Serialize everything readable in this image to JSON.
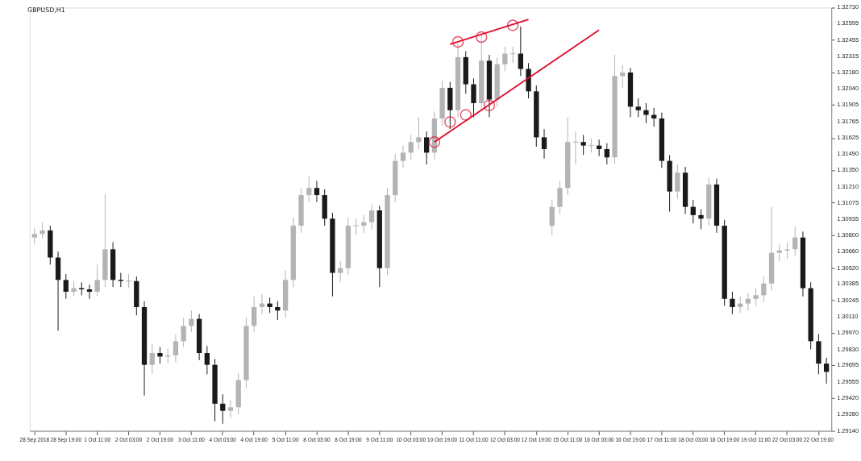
{
  "chart_data": {
    "type": "candlestick",
    "title": "GBPUSD,H1",
    "categories": [
      "28 Sep 2018",
      null,
      null,
      null,
      "28 Sep 19:00",
      null,
      null,
      null,
      "1 Oct 11:00",
      null,
      null,
      null,
      "2 Oct 03:00",
      null,
      null,
      null,
      "2 Oct 19:00",
      null,
      null,
      null,
      "3 Oct 11:00",
      null,
      null,
      null,
      "4 Oct 03:00",
      null,
      null,
      null,
      "4 Oct 19:00",
      null,
      null,
      null,
      "5 Oct 11:00",
      null,
      null,
      null,
      "8 Oct 03:00",
      null,
      null,
      null,
      "8 Oct 19:00",
      null,
      null,
      null,
      "9 Oct 11:00",
      null,
      null,
      null,
      "10 Oct 03:00",
      null,
      null,
      null,
      "10 Oct 19:00",
      null,
      null,
      null,
      "11 Oct 11:00",
      null,
      null,
      null,
      "12 Oct 03:00",
      null,
      null,
      null,
      "12 Oct 19:00",
      null,
      null,
      null,
      "15 Oct 11:00",
      null,
      null,
      null,
      "16 Oct 03:00",
      null,
      null,
      null,
      "16 Oct 19:00",
      null,
      null,
      null,
      "17 Oct 11:00",
      null,
      null,
      null,
      "18 Oct 03:00",
      null,
      null,
      null,
      "18 Oct 19:00",
      null,
      null,
      null,
      "19 Oct 11:00",
      null,
      null,
      null,
      "22 Oct 03:00",
      null,
      null,
      null,
      "22 Oct 19:00",
      null
    ],
    "colors": [
      "#b4b4b4",
      "#b4b4b4",
      "#1a1a1a",
      "#1a1a1a",
      "#1a1a1a",
      "#b4b4b4",
      "#1a1a1a",
      "#1a1a1a",
      "#b4b4b4",
      "#b4b4b4",
      "#1a1a1a",
      "#1a1a1a",
      "#b4b4b4",
      "#1a1a1a",
      "#1a1a1a",
      "#b4b4b4",
      "#1a1a1a",
      "#b4b4b4",
      "#b4b4b4",
      "#b4b4b4",
      "#b4b4b4",
      "#1a1a1a",
      "#1a1a1a",
      "#1a1a1a",
      "#1a1a1a",
      "#b4b4b4",
      "#b4b4b4",
      "#b4b4b4",
      "#b4b4b4",
      "#b4b4b4",
      "#1a1a1a",
      "#1a1a1a",
      "#b4b4b4",
      "#b4b4b4",
      "#b4b4b4",
      "#b4b4b4",
      "#1a1a1a",
      "#1a1a1a",
      "#1a1a1a",
      "#b4b4b4",
      "#b4b4b4",
      "#b4b4b4",
      "#b4b4b4",
      "#b4b4b4",
      "#1a1a1a",
      "#b4b4b4",
      "#b4b4b4",
      "#b4b4b4",
      "#b4b4b4",
      "#b4b4b4",
      "#1a1a1a",
      "#b4b4b4",
      "#b4b4b4",
      "#1a1a1a",
      "#b4b4b4",
      "#1a1a1a",
      "#1a1a1a",
      "#b4b4b4",
      "#1a1a1a",
      "#b4b4b4",
      "#b4b4b4",
      "#b4b4b4",
      "#1a1a1a",
      "#1a1a1a",
      "#1a1a1a",
      "#1a1a1a",
      "#b4b4b4",
      "#b4b4b4",
      "#b4b4b4",
      "#b4b4b4",
      "#1a1a1a",
      "#b4b4b4",
      "#1a1a1a",
      "#1a1a1a",
      "#b4b4b4",
      "#b4b4b4",
      "#1a1a1a",
      "#1a1a1a",
      "#1a1a1a",
      "#1a1a1a",
      "#1a1a1a",
      "#1a1a1a",
      "#b4b4b4",
      "#1a1a1a",
      "#1a1a1a",
      "#1a1a1a",
      "#b4b4b4",
      "#1a1a1a",
      "#1a1a1a",
      "#1a1a1a",
      "#b4b4b4",
      "#b4b4b4",
      "#b4b4b4",
      "#b4b4b4",
      "#b4b4b4",
      "#b4b4b4",
      "#b4b4b4",
      "#b4b4b4",
      "#1a1a1a",
      "#1a1a1a",
      "#1a1a1a",
      "#1a1a1a"
    ],
    "ohlc": [
      [
        1.3078,
        1.3086,
        1.3072,
        1.3081
      ],
      [
        1.3081,
        1.3091,
        1.3077,
        1.3084
      ],
      [
        1.3084,
        1.3088,
        1.3055,
        1.3061
      ],
      [
        1.3061,
        1.3066,
        1.2999,
        1.3042
      ],
      [
        1.3042,
        1.3047,
        1.3026,
        1.3032
      ],
      [
        1.3032,
        1.3041,
        1.3028,
        1.3035
      ],
      [
        1.3035,
        1.304,
        1.3029,
        1.3034
      ],
      [
        1.3034,
        1.3038,
        1.3026,
        1.3032
      ],
      [
        1.3032,
        1.3055,
        1.3028,
        1.3042
      ],
      [
        1.3042,
        1.3115,
        1.3036,
        1.3068
      ],
      [
        1.3068,
        1.3074,
        1.3036,
        1.3042
      ],
      [
        1.3042,
        1.3048,
        1.3036,
        1.3041
      ],
      [
        1.3041,
        1.3047,
        1.3035,
        1.3041
      ],
      [
        1.3041,
        1.3045,
        1.3012,
        1.3019
      ],
      [
        1.3019,
        1.3024,
        1.2944,
        1.297
      ],
      [
        1.297,
        1.2988,
        1.2962,
        1.298
      ],
      [
        1.298,
        1.2985,
        1.2971,
        1.2977
      ],
      [
        1.2977,
        1.2984,
        1.2971,
        1.2978
      ],
      [
        1.2978,
        1.2996,
        1.2972,
        1.299
      ],
      [
        1.299,
        1.301,
        1.2985,
        1.3003
      ],
      [
        1.3003,
        1.3016,
        1.2998,
        1.3009
      ],
      [
        1.3009,
        1.3013,
        1.2974,
        1.298
      ],
      [
        1.298,
        1.2986,
        1.2962,
        1.297
      ],
      [
        1.297,
        1.2975,
        1.2922,
        1.2937
      ],
      [
        1.2937,
        1.2945,
        1.292,
        1.2931
      ],
      [
        1.2931,
        1.294,
        1.2925,
        1.2934
      ],
      [
        1.2934,
        1.2963,
        1.2928,
        1.2957
      ],
      [
        1.2957,
        1.301,
        1.295,
        1.3003
      ],
      [
        1.3003,
        1.3028,
        1.2998,
        1.3019
      ],
      [
        1.3019,
        1.303,
        1.3013,
        1.3022
      ],
      [
        1.3022,
        1.3027,
        1.3014,
        1.3019
      ],
      [
        1.3019,
        1.3024,
        1.3008,
        1.3016
      ],
      [
        1.3016,
        1.305,
        1.301,
        1.3042
      ],
      [
        1.3042,
        1.3095,
        1.3036,
        1.3088
      ],
      [
        1.3088,
        1.312,
        1.3082,
        1.3114
      ],
      [
        1.3114,
        1.313,
        1.3108,
        1.312
      ],
      [
        1.312,
        1.3126,
        1.3108,
        1.3114
      ],
      [
        1.3114,
        1.3119,
        1.3088,
        1.3094
      ],
      [
        1.3094,
        1.3099,
        1.3028,
        1.3048
      ],
      [
        1.3048,
        1.3058,
        1.304,
        1.3052
      ],
      [
        1.3052,
        1.3095,
        1.3046,
        1.3088
      ],
      [
        1.3088,
        1.3094,
        1.308,
        1.3088
      ],
      [
        1.3088,
        1.3097,
        1.3082,
        1.3091
      ],
      [
        1.3091,
        1.3106,
        1.3085,
        1.3101
      ],
      [
        1.3101,
        1.3105,
        1.3036,
        1.3052
      ],
      [
        1.3052,
        1.312,
        1.3046,
        1.3114
      ],
      [
        1.3114,
        1.3149,
        1.3108,
        1.3143
      ],
      [
        1.3143,
        1.3156,
        1.3137,
        1.315
      ],
      [
        1.315,
        1.3165,
        1.3144,
        1.3159
      ],
      [
        1.3159,
        1.318,
        1.3153,
        1.3163
      ],
      [
        1.3163,
        1.3168,
        1.314,
        1.315
      ],
      [
        1.315,
        1.3185,
        1.3144,
        1.3179
      ],
      [
        1.3179,
        1.3211,
        1.3173,
        1.3205
      ],
      [
        1.3205,
        1.321,
        1.317,
        1.3186
      ],
      [
        1.3186,
        1.3243,
        1.318,
        1.3231
      ],
      [
        1.3231,
        1.3236,
        1.32,
        1.3208
      ],
      [
        1.3208,
        1.3213,
        1.318,
        1.3192
      ],
      [
        1.3192,
        1.325,
        1.3186,
        1.3228
      ],
      [
        1.3228,
        1.3233,
        1.318,
        1.3195
      ],
      [
        1.3195,
        1.3231,
        1.3189,
        1.3225
      ],
      [
        1.3225,
        1.324,
        1.3219,
        1.3234
      ],
      [
        1.3234,
        1.324,
        1.3226,
        1.3234
      ],
      [
        1.3234,
        1.3257,
        1.3215,
        1.3221
      ],
      [
        1.3221,
        1.3226,
        1.3196,
        1.3202
      ],
      [
        1.3202,
        1.3207,
        1.3155,
        1.3163
      ],
      [
        1.3163,
        1.317,
        1.3145,
        1.3153
      ],
      [
        1.3088,
        1.311,
        1.308,
        1.3104
      ],
      [
        1.3104,
        1.3126,
        1.3098,
        1.312
      ],
      [
        1.312,
        1.318,
        1.3114,
        1.3159
      ],
      [
        1.3159,
        1.3168,
        1.314,
        1.3159
      ],
      [
        1.3159,
        1.3165,
        1.3148,
        1.3156
      ],
      [
        1.3156,
        1.3162,
        1.315,
        1.3156
      ],
      [
        1.3156,
        1.3161,
        1.3147,
        1.3153
      ],
      [
        1.3153,
        1.3158,
        1.314,
        1.3146
      ],
      [
        1.3146,
        1.3233,
        1.314,
        1.3215
      ],
      [
        1.3215,
        1.3224,
        1.3205,
        1.3218
      ],
      [
        1.3218,
        1.3222,
        1.318,
        1.3189
      ],
      [
        1.3189,
        1.3196,
        1.318,
        1.3186
      ],
      [
        1.3186,
        1.3192,
        1.3175,
        1.3182
      ],
      [
        1.3182,
        1.3188,
        1.3172,
        1.3179
      ],
      [
        1.3179,
        1.3184,
        1.3137,
        1.3143
      ],
      [
        1.3143,
        1.3148,
        1.31,
        1.3117
      ],
      [
        1.3117,
        1.314,
        1.3111,
        1.3133
      ],
      [
        1.3133,
        1.3138,
        1.3098,
        1.3104
      ],
      [
        1.3104,
        1.311,
        1.309,
        1.3097
      ],
      [
        1.3097,
        1.3102,
        1.3085,
        1.3094
      ],
      [
        1.3094,
        1.3129,
        1.3088,
        1.3123
      ],
      [
        1.3123,
        1.3128,
        1.3082,
        1.3088
      ],
      [
        1.3088,
        1.3093,
        1.302,
        1.3026
      ],
      [
        1.3026,
        1.3032,
        1.3013,
        1.3019
      ],
      [
        1.3019,
        1.3028,
        1.3014,
        1.3022
      ],
      [
        1.3022,
        1.3031,
        1.3016,
        1.3026
      ],
      [
        1.3026,
        1.3035,
        1.302,
        1.3029
      ],
      [
        1.3029,
        1.3045,
        1.3023,
        1.3039
      ],
      [
        1.3039,
        1.3104,
        1.3033,
        1.3065
      ],
      [
        1.3065,
        1.3072,
        1.3058,
        1.3067
      ],
      [
        1.3067,
        1.3074,
        1.306,
        1.3068
      ],
      [
        1.3068,
        1.3087,
        1.3062,
        1.3078
      ],
      [
        1.3078,
        1.3083,
        1.3028,
        1.3035
      ],
      [
        1.3035,
        1.304,
        1.2983,
        1.299
      ],
      [
        1.299,
        1.2996,
        1.2962,
        1.2971
      ],
      [
        1.2971,
        1.2976,
        1.2954,
        1.2964
      ]
    ],
    "series": [
      {
        "type": "line",
        "color": "#e0102f",
        "values": [
          null,
          null,
          null,
          null,
          null,
          null,
          null,
          null,
          null,
          null,
          null,
          null,
          null,
          null,
          null,
          null,
          null,
          null,
          null,
          null,
          null,
          null,
          null,
          null,
          null,
          null,
          null,
          null,
          null,
          null,
          null,
          null,
          null,
          null,
          null,
          null,
          null,
          null,
          null,
          null,
          null,
          null,
          null,
          null,
          null,
          null,
          null,
          null,
          null,
          null,
          null,
          1.3159,
          null,
          null,
          null,
          null,
          null,
          null,
          null,
          null,
          null,
          null,
          null,
          null,
          null,
          null,
          null,
          null,
          null,
          null,
          null,
          null,
          1.3254,
          null,
          null,
          null,
          null,
          null,
          null,
          null,
          null,
          null,
          null,
          null,
          null,
          null,
          null,
          null,
          null,
          null,
          null,
          null,
          null,
          null,
          null,
          null,
          null,
          null,
          null,
          null,
          null,
          null
        ]
      },
      {
        "type": "line",
        "color": "#e0102f",
        "values": [
          null,
          null,
          null,
          null,
          null,
          null,
          null,
          null,
          null,
          null,
          null,
          null,
          null,
          null,
          null,
          null,
          null,
          null,
          null,
          null,
          null,
          null,
          null,
          null,
          null,
          null,
          null,
          null,
          null,
          null,
          null,
          null,
          null,
          null,
          null,
          null,
          null,
          null,
          null,
          null,
          null,
          null,
          null,
          null,
          null,
          null,
          null,
          null,
          null,
          null,
          null,
          null,
          null,
          1.3242,
          null,
          null,
          null,
          null,
          null,
          null,
          null,
          null,
          null,
          1.3263,
          null,
          null,
          null,
          null,
          null,
          null,
          null,
          null,
          null,
          null,
          null,
          null,
          null,
          null,
          null,
          null,
          null,
          null,
          null,
          null,
          null,
          null,
          null,
          null,
          null,
          null,
          null,
          null,
          null,
          null,
          null,
          null,
          null,
          null,
          null,
          null,
          null,
          null
        ]
      },
      {
        "type": "scatter",
        "marker": "circle",
        "color": "#e0102f",
        "values": [
          null,
          null,
          null,
          null,
          null,
          null,
          null,
          null,
          null,
          null,
          null,
          null,
          null,
          null,
          null,
          null,
          null,
          null,
          null,
          null,
          null,
          null,
          null,
          null,
          null,
          null,
          null,
          null,
          null,
          null,
          null,
          null,
          null,
          null,
          null,
          null,
          null,
          null,
          null,
          null,
          null,
          null,
          null,
          null,
          null,
          null,
          null,
          null,
          null,
          null,
          null,
          1.3159,
          null,
          1.3176,
          1.3244,
          1.3182,
          null,
          1.3248,
          1.319,
          null,
          null,
          1.3258,
          null,
          null,
          null,
          null,
          null,
          null,
          null,
          null,
          null,
          null,
          null,
          null,
          null,
          null,
          null,
          null,
          null,
          null,
          null,
          null,
          null,
          null,
          null,
          null,
          null,
          null,
          null,
          null,
          null,
          null,
          null,
          null,
          null,
          null,
          null,
          null,
          null,
          null,
          null,
          null
        ]
      }
    ],
    "ylim": [
      1.2914,
      1.3273
    ],
    "yticks": [
      {
        "value": 1.3273,
        "label": "1.32730"
      },
      1.32595,
      1.32455,
      1.32315,
      {
        "value": 1.3218,
        "label": "1.32180"
      },
      {
        "value": 1.3204,
        "label": "1.32040"
      },
      1.31905,
      1.31765,
      1.31625,
      {
        "value": 1.3149,
        "label": "1.31490"
      },
      {
        "value": 1.3135,
        "label": "1.31350"
      },
      {
        "value": 1.3121,
        "label": "1.31210"
      },
      1.31075,
      1.30935,
      {
        "value": 1.308,
        "label": "1.30800"
      },
      {
        "value": 1.3066,
        "label": "1.30660"
      },
      {
        "value": 1.3052,
        "label": "1.30520"
      },
      1.30385,
      1.30245,
      {
        "value": 1.3011,
        "label": "1.30110"
      },
      {
        "value": 1.2997,
        "label": "1.29970"
      },
      {
        "value": 1.2983,
        "label": "1.29830"
      },
      1.29695,
      1.29555,
      {
        "value": 1.2942,
        "label": "1.29420"
      },
      {
        "value": 1.2928,
        "label": "1.29280"
      },
      {
        "value": 1.2914,
        "label": "1.29140"
      }
    ]
  }
}
